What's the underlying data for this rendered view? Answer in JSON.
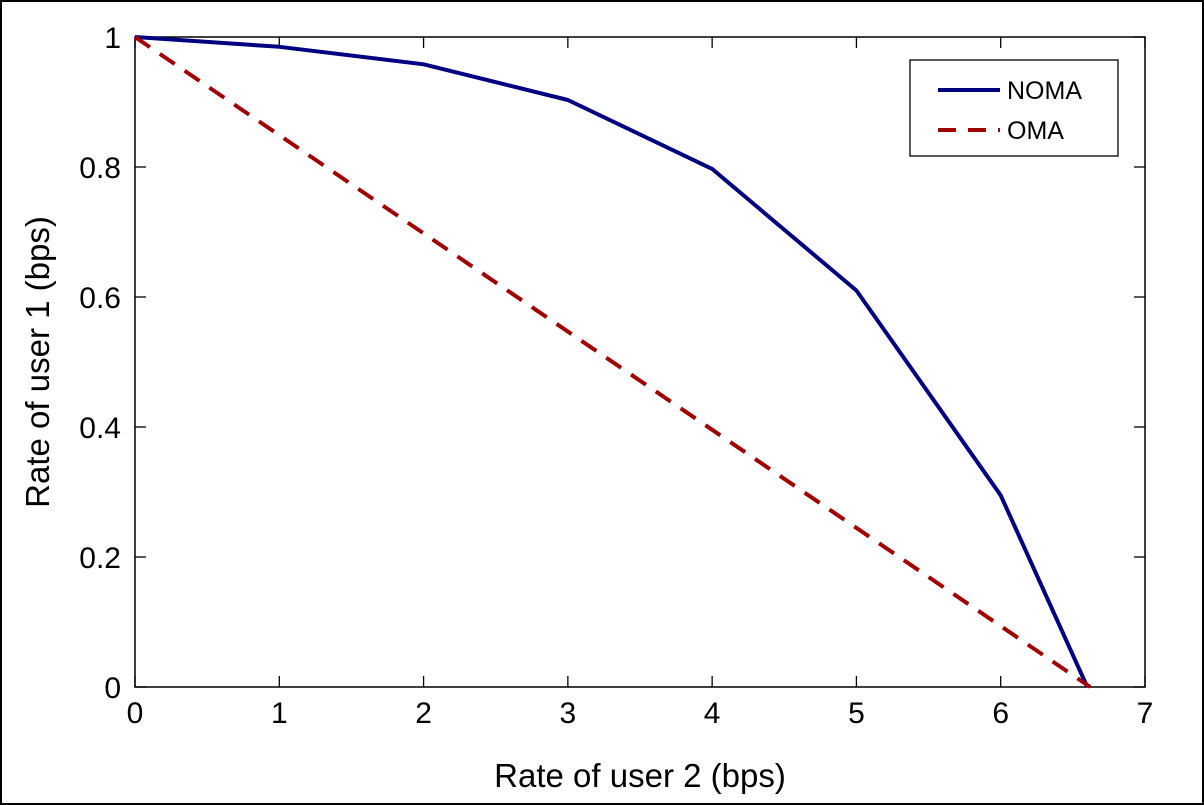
{
  "chart_data": {
    "type": "line",
    "title": "",
    "xlabel": "Rate of user 2 (bps)",
    "ylabel": "Rate of user 1 (bps)",
    "xlim": [
      0,
      7
    ],
    "ylim": [
      0,
      1
    ],
    "xticks": [
      "0",
      "1",
      "2",
      "3",
      "4",
      "5",
      "6",
      "7"
    ],
    "yticks": [
      "0",
      "0.2",
      "0.4",
      "0.6",
      "0.8",
      "1"
    ],
    "grid": false,
    "legend": "top-right",
    "series": [
      {
        "name": "NOMA",
        "style": "solid",
        "color": "#000080",
        "x": [
          0,
          1,
          2,
          3,
          4,
          5,
          6,
          6.6
        ],
        "y": [
          1.0,
          0.985,
          0.958,
          0.903,
          0.797,
          0.61,
          0.295,
          0.0
        ]
      },
      {
        "name": "OMA",
        "style": "dashed",
        "color": "#a00000",
        "x": [
          0,
          6.62
        ],
        "y": [
          1.0,
          0.0
        ]
      }
    ]
  }
}
